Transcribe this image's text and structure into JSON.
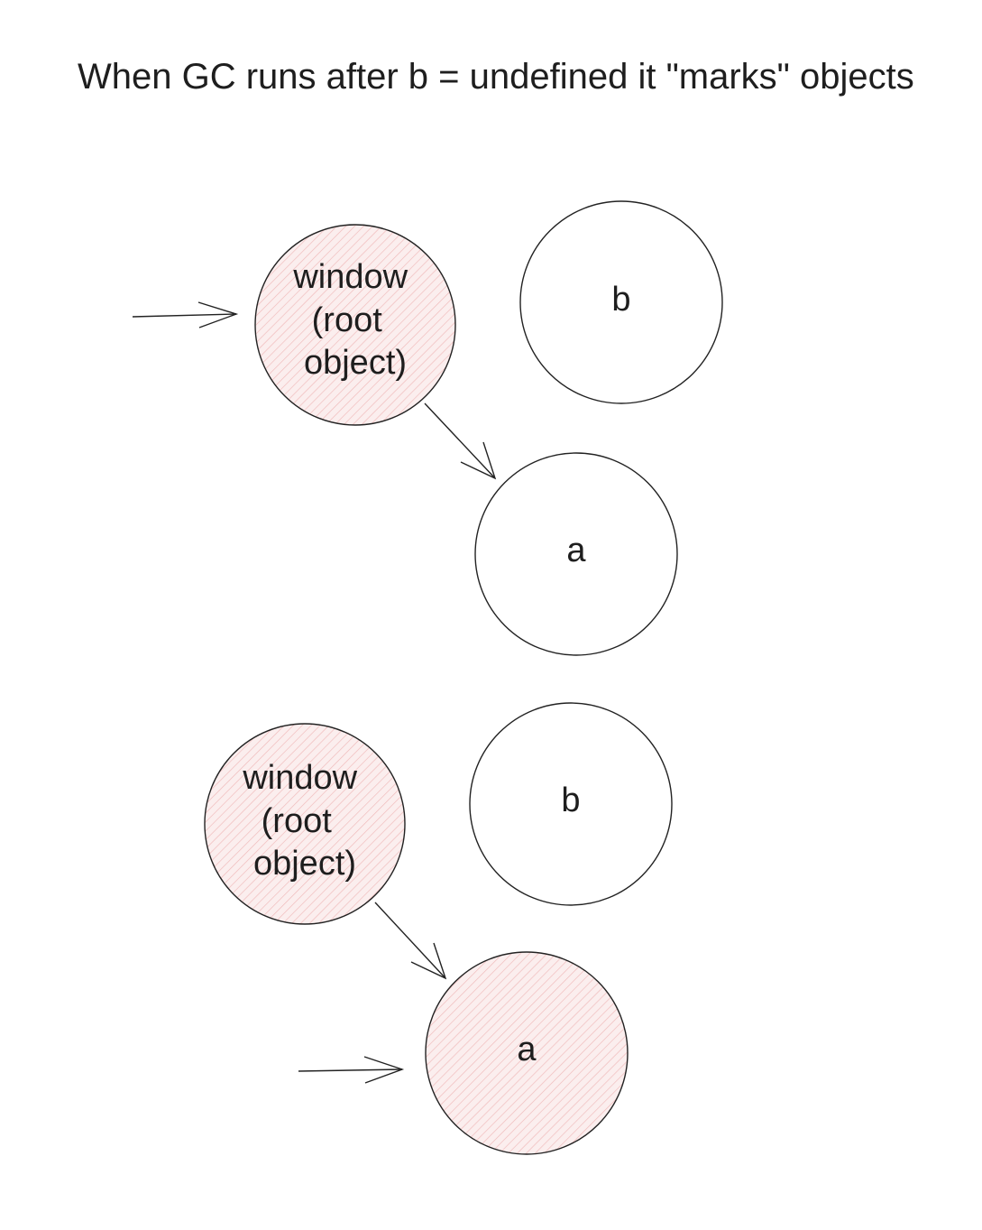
{
  "title": "When GC runs after b = undefined it \"marks\" objects",
  "colors": {
    "marked_fill": "#fbeeee",
    "marked_hatch": "#f0b9b9",
    "unmarked_fill": "#ffffff",
    "stroke": "#222222",
    "text": "#1e1e1e"
  },
  "diagrams": [
    {
      "nodes": [
        {
          "id": "window",
          "lines": [
            "window",
            "(root",
            "object)"
          ],
          "marked": true
        },
        {
          "id": "b",
          "lines": [
            "b"
          ],
          "marked": false
        },
        {
          "id": "a",
          "lines": [
            "a"
          ],
          "marked": false
        }
      ],
      "edges": [
        {
          "from": "external",
          "to": "window"
        },
        {
          "from": "window",
          "to": "a"
        }
      ]
    },
    {
      "nodes": [
        {
          "id": "window",
          "lines": [
            "window",
            "(root",
            "object)"
          ],
          "marked": true
        },
        {
          "id": "b",
          "lines": [
            "b"
          ],
          "marked": false
        },
        {
          "id": "a",
          "lines": [
            "a"
          ],
          "marked": true
        }
      ],
      "edges": [
        {
          "from": "window",
          "to": "a"
        },
        {
          "from": "external",
          "to": "a"
        }
      ]
    }
  ]
}
